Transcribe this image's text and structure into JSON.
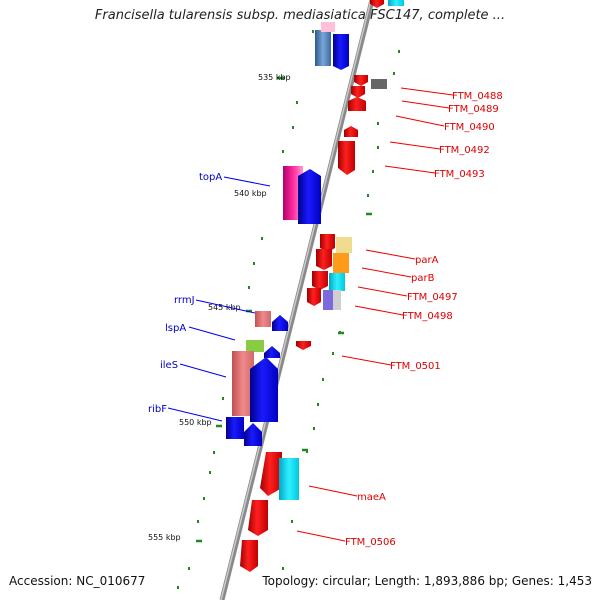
{
  "title": "Francisella tularensis subsp. mediasiatica FSC147, complete ...",
  "footer": {
    "accession": "Accession: NC_010677",
    "topology": "Topology: circular; Length: 1,893,886 bp; Genes: 1,453"
  },
  "kbp_labels": [
    "535 kbp",
    "540 kbp",
    "545 kbp",
    "550 kbp",
    "555 kbp"
  ],
  "left_genes": [
    "topA",
    "rrmJ",
    "lspA",
    "ileS",
    "ribF"
  ],
  "right_genes": [
    "FTM_0488",
    "FTM_0489",
    "FTM_0490",
    "FTM_0492",
    "FTM_0493",
    "parA",
    "parB",
    "FTM_0497",
    "FTM_0498",
    "FTM_0501",
    "maeA",
    "FTM_0506"
  ],
  "colors": {
    "forward": "#0000ee",
    "reverse": "#ee0000",
    "backbone": "#888888",
    "ticks": "#228822"
  }
}
